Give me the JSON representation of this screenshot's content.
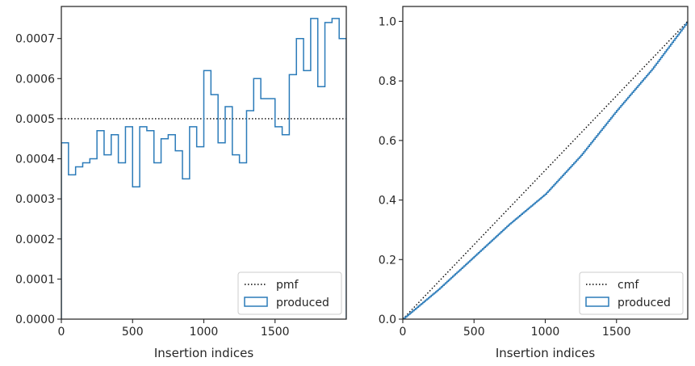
{
  "chart_data": [
    {
      "type": "histogram",
      "xlabel": "Insertion indices",
      "ylabel": "",
      "xlim": [
        0,
        2000
      ],
      "ylim": [
        0,
        0.00078
      ],
      "xticks": [
        0,
        500,
        1000,
        1500
      ],
      "yticks": [
        0,
        0.0001,
        0.0002,
        0.0003,
        0.0004,
        0.0005,
        0.0006,
        0.0007
      ],
      "ytick_labels": [
        "0.0000",
        "0.0001",
        "0.0002",
        "0.0003",
        "0.0004",
        "0.0005",
        "0.0006",
        "0.0007"
      ],
      "legend": {
        "position": "bottom-right",
        "entries": [
          "pmf",
          "produced"
        ]
      },
      "series": [
        {
          "name": "pmf",
          "style": "dotted",
          "color": "#000000",
          "x": [
            0,
            2000
          ],
          "values": [
            0.0005,
            0.0005
          ]
        },
        {
          "name": "produced",
          "style": "step",
          "color": "#2b7bb9",
          "bin_width": 50,
          "bin_start": 0,
          "values": [
            0.00044,
            0.00036,
            0.00038,
            0.00039,
            0.0004,
            0.00047,
            0.00041,
            0.00046,
            0.00039,
            0.00048,
            0.00033,
            0.00048,
            0.00047,
            0.00039,
            0.00045,
            0.00046,
            0.00042,
            0.00035,
            0.00048,
            0.00043,
            0.00062,
            0.00056,
            0.00044,
            0.00053,
            0.00041,
            0.00039,
            0.00052,
            0.0006,
            0.00055,
            0.00055,
            0.00048,
            0.00046,
            0.00061,
            0.0007,
            0.00062,
            0.00075,
            0.00058,
            0.00074,
            0.00075,
            0.0007
          ]
        }
      ]
    },
    {
      "type": "line",
      "xlabel": "Insertion indices",
      "ylabel": "",
      "xlim": [
        0,
        2000
      ],
      "ylim": [
        0,
        1.05
      ],
      "xticks": [
        0,
        500,
        1000,
        1500
      ],
      "yticks": [
        0,
        0.2,
        0.4,
        0.6,
        0.8,
        1.0
      ],
      "ytick_labels": [
        "0.0",
        "0.2",
        "0.4",
        "0.6",
        "0.8",
        "1.0"
      ],
      "legend": {
        "position": "bottom-right",
        "entries": [
          "cmf",
          "produced"
        ]
      },
      "series": [
        {
          "name": "cmf",
          "style": "dotted",
          "color": "#000000",
          "x": [
            0,
            2000
          ],
          "values": [
            0,
            1.0
          ]
        },
        {
          "name": "produced",
          "style": "step",
          "color": "#2b7bb9",
          "x": [
            0,
            250,
            500,
            750,
            1000,
            1250,
            1500,
            1750,
            2000
          ],
          "values": [
            0,
            0.1,
            0.21,
            0.32,
            0.42,
            0.55,
            0.7,
            0.84,
            1.0
          ]
        }
      ]
    }
  ]
}
